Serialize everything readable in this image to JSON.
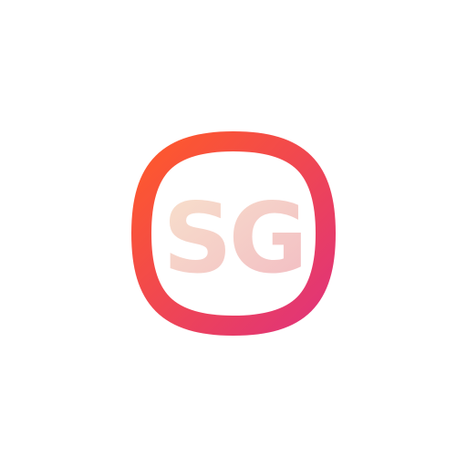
{
  "logo": {
    "text": "SG",
    "colors": {
      "border_start": "#ff5a2a",
      "border_end": "#e0337a",
      "text_start": "#f8e1cc",
      "text_end": "#f2bcc3",
      "background": "#ffffff"
    }
  }
}
